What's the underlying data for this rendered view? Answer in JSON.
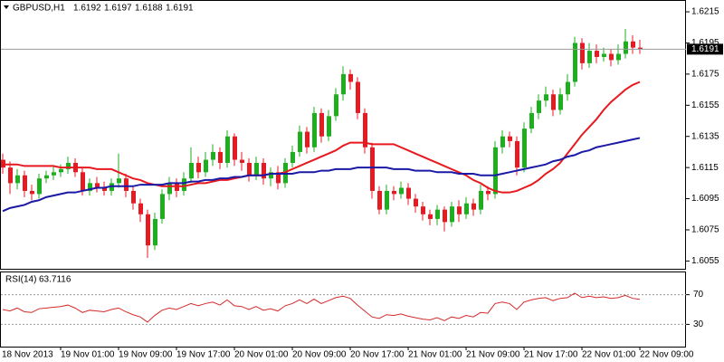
{
  "chart_data": [
    {
      "type": "candlestick",
      "title": "GBPUSD,H1",
      "categories": [
        "18 Nov 2013",
        null,
        null,
        null,
        null,
        null,
        null,
        null,
        "19 Nov 01:00",
        null,
        null,
        null,
        null,
        null,
        null,
        null,
        "19 Nov 09:00",
        null,
        null,
        null,
        null,
        null,
        null,
        null,
        "19 Nov 17:00",
        null,
        null,
        null,
        null,
        null,
        null,
        null,
        "20 Nov 01:00",
        null,
        null,
        null,
        null,
        null,
        null,
        null,
        "20 Nov 09:00",
        null,
        null,
        null,
        null,
        null,
        null,
        null,
        "20 Nov 17:00",
        null,
        null,
        null,
        null,
        null,
        null,
        null,
        "21 Nov 01:00",
        null,
        null,
        null,
        null,
        null,
        null,
        null,
        "21 Nov 09:00",
        null,
        null,
        null,
        null,
        null,
        null,
        null,
        "21 Nov 17:00",
        null,
        null,
        null,
        null,
        null,
        null,
        null,
        "22 Nov 01:00",
        null,
        null,
        null,
        null,
        null,
        null,
        null,
        "22 Nov 09:00"
      ],
      "open": [
        1.612,
        1.6115,
        1.6105,
        1.611,
        1.61,
        1.6098,
        1.6108,
        1.611,
        1.6112,
        1.6114,
        1.6118,
        1.6112,
        1.61,
        1.6105,
        1.6102,
        1.61,
        1.6105,
        1.6108,
        1.61,
        1.6092,
        1.6085,
        1.6065,
        1.6082,
        1.6098,
        1.6105,
        1.61,
        1.6108,
        1.6118,
        1.6112,
        1.612,
        1.6125,
        1.6118,
        1.6135,
        1.612,
        1.6118,
        1.611,
        1.6118,
        1.6108,
        1.6112,
        1.6105,
        1.6118,
        1.6125,
        1.6138,
        1.6128,
        1.615,
        1.6135,
        1.6148,
        1.6162,
        1.6175,
        1.617,
        1.615,
        1.6128,
        1.61,
        1.6088,
        1.61,
        1.6098,
        1.6102,
        1.6095,
        1.609,
        1.6085,
        1.6082,
        1.6088,
        1.608,
        1.609,
        1.6085,
        1.6092,
        1.6088,
        1.61,
        1.6098,
        1.6128,
        1.6135,
        1.6132,
        1.6115,
        1.614,
        1.615,
        1.6158,
        1.6162,
        1.6152,
        1.6162,
        1.617,
        1.6195,
        1.6182,
        1.619,
        1.6186,
        1.6188,
        1.6184,
        1.6188,
        1.6196,
        1.6192
      ],
      "high": [
        1.6124,
        1.6119,
        1.6114,
        1.6113,
        1.6104,
        1.6111,
        1.6113,
        1.6116,
        1.6117,
        1.6122,
        1.6121,
        1.6115,
        1.6108,
        1.6109,
        1.6106,
        1.6108,
        1.6124,
        1.6111,
        1.6103,
        1.6095,
        1.6088,
        1.6086,
        1.6101,
        1.6109,
        1.6108,
        1.6112,
        1.6128,
        1.6122,
        1.6125,
        1.613,
        1.6128,
        1.6139,
        1.6137,
        1.6125,
        1.6121,
        1.6122,
        1.6121,
        1.6115,
        1.6116,
        1.6121,
        1.6129,
        1.6142,
        1.6141,
        1.6154,
        1.6153,
        1.6152,
        1.6166,
        1.618,
        1.6178,
        1.6173,
        1.6153,
        1.6131,
        1.6103,
        1.6104,
        1.6103,
        1.6106,
        1.6105,
        1.6098,
        1.6093,
        1.6088,
        1.6091,
        1.609,
        1.6093,
        1.6094,
        1.6096,
        1.6095,
        1.6104,
        1.6103,
        1.6132,
        1.6139,
        1.6138,
        1.6135,
        1.6144,
        1.6154,
        1.6162,
        1.6167,
        1.6165,
        1.6166,
        1.6175,
        1.6199,
        1.6198,
        1.6195,
        1.6194,
        1.6192,
        1.6191,
        1.6194,
        1.6204,
        1.62,
        1.6197
      ],
      "low": [
        1.6111,
        1.6098,
        1.6101,
        1.6096,
        1.6094,
        1.6095,
        1.6105,
        1.6107,
        1.6109,
        1.6111,
        1.6109,
        1.6097,
        1.6097,
        1.6099,
        1.6097,
        1.6097,
        1.6102,
        1.6096,
        1.6088,
        1.608,
        1.6057,
        1.6062,
        1.6079,
        1.6094,
        1.6096,
        1.6097,
        1.6105,
        1.6108,
        1.6109,
        1.6116,
        1.6114,
        1.6115,
        1.6116,
        1.6113,
        1.6106,
        1.6107,
        1.6104,
        1.6103,
        1.6101,
        1.6102,
        1.6115,
        1.6122,
        1.6124,
        1.6125,
        1.6131,
        1.6132,
        1.6145,
        1.6158,
        1.6165,
        1.6146,
        1.6124,
        1.6095,
        1.6085,
        1.6085,
        1.6094,
        1.6095,
        1.6091,
        1.6086,
        1.6081,
        1.6078,
        1.6078,
        1.6074,
        1.6077,
        1.608,
        1.6082,
        1.6084,
        1.6085,
        1.6094,
        1.6095,
        1.6124,
        1.6128,
        1.611,
        1.6112,
        1.6137,
        1.6146,
        1.6154,
        1.6148,
        1.6149,
        1.6158,
        1.6167,
        1.6178,
        1.6179,
        1.6182,
        1.6183,
        1.618,
        1.6181,
        1.6185,
        1.6188,
        1.6188
      ],
      "close": [
        1.6115,
        1.6105,
        1.611,
        1.61,
        1.6098,
        1.6108,
        1.611,
        1.6112,
        1.6114,
        1.6118,
        1.6112,
        1.61,
        1.6105,
        1.6102,
        1.61,
        1.6105,
        1.6108,
        1.61,
        1.6092,
        1.6085,
        1.6065,
        1.6082,
        1.6098,
        1.6105,
        1.61,
        1.6108,
        1.6118,
        1.6112,
        1.612,
        1.6125,
        1.6118,
        1.6135,
        1.612,
        1.6118,
        1.611,
        1.6118,
        1.6108,
        1.6112,
        1.6105,
        1.6118,
        1.6125,
        1.6138,
        1.6128,
        1.615,
        1.6135,
        1.6148,
        1.6162,
        1.6175,
        1.617,
        1.615,
        1.6128,
        1.61,
        1.6088,
        1.61,
        1.6098,
        1.6102,
        1.6095,
        1.609,
        1.6085,
        1.6082,
        1.6088,
        1.608,
        1.609,
        1.6085,
        1.6092,
        1.6088,
        1.61,
        1.6098,
        1.6128,
        1.6135,
        1.6132,
        1.6115,
        1.614,
        1.615,
        1.6158,
        1.6162,
        1.6152,
        1.6162,
        1.617,
        1.6195,
        1.6182,
        1.619,
        1.6186,
        1.6188,
        1.6184,
        1.6188,
        1.6196,
        1.6192,
        1.6191
      ],
      "up_color": "#1fae1f",
      "down_color": "#e41b23",
      "overlays": [
        {
          "color": "#e8191e",
          "values": [
            1.6117,
            1.6117,
            1.6117,
            1.6116,
            1.6116,
            1.6116,
            1.6116,
            1.6116,
            1.6115,
            1.6115,
            1.6115,
            1.6115,
            1.6115,
            1.6114,
            1.6114,
            1.6114,
            1.6112,
            1.611,
            1.6108,
            1.6107,
            1.6105,
            1.6104,
            1.6103,
            1.6103,
            1.6103,
            1.6103,
            1.6104,
            1.6105,
            1.6105,
            1.6106,
            1.6107,
            1.6107,
            1.6108,
            1.6109,
            1.611,
            1.611,
            1.611,
            1.6111,
            1.6111,
            1.6112,
            1.6114,
            1.6116,
            1.6118,
            1.612,
            1.6122,
            1.6124,
            1.6126,
            1.6129,
            1.6131,
            1.6131,
            1.6131,
            1.613,
            1.613,
            1.613,
            1.613,
            1.6128,
            1.6126,
            1.6124,
            1.6122,
            1.612,
            1.6118,
            1.6116,
            1.6114,
            1.6112,
            1.611,
            1.6107,
            1.6105,
            1.6102,
            1.61,
            1.6099,
            1.6099,
            1.61,
            1.6102,
            1.6104,
            1.6107,
            1.6111,
            1.6114,
            1.6118,
            1.6124,
            1.613,
            1.6136,
            1.6141,
            1.6146,
            1.6152,
            1.6157,
            1.6161,
            1.6165,
            1.6168,
            1.617
          ]
        },
        {
          "color": "#1a1aa6",
          "values": [
            1.6087,
            1.6089,
            1.609,
            1.6091,
            1.6093,
            1.6094,
            1.6096,
            1.6097,
            1.6098,
            1.6099,
            1.6099,
            1.61,
            1.6101,
            1.6102,
            1.6102,
            1.6103,
            1.6103,
            1.6103,
            1.6103,
            1.6104,
            1.6104,
            1.6104,
            1.6104,
            1.6105,
            1.6105,
            1.6105,
            1.6106,
            1.6106,
            1.6107,
            1.6107,
            1.6108,
            1.6108,
            1.6109,
            1.6109,
            1.611,
            1.611,
            1.611,
            1.6111,
            1.6111,
            1.6111,
            1.6111,
            1.6112,
            1.6112,
            1.6112,
            1.6113,
            1.6113,
            1.6114,
            1.6114,
            1.6114,
            1.6115,
            1.6115,
            1.6115,
            1.6115,
            1.6115,
            1.6114,
            1.6114,
            1.6114,
            1.6113,
            1.6113,
            1.6113,
            1.6112,
            1.6112,
            1.6112,
            1.6111,
            1.6111,
            1.6111,
            1.611,
            1.611,
            1.611,
            1.6111,
            1.6112,
            1.6113,
            1.6114,
            1.6115,
            1.6116,
            1.6117,
            1.6119,
            1.612,
            1.6122,
            1.6123,
            1.6125,
            1.6126,
            1.6128,
            1.6129,
            1.613,
            1.6131,
            1.6132,
            1.6133,
            1.6134
          ]
        }
      ],
      "ylim": [
        1.605,
        1.6222
      ],
      "yticks": [
        1.6215,
        1.6195,
        1.6175,
        1.6155,
        1.6135,
        1.6115,
        1.6095,
        1.6075,
        1.6055
      ]
    },
    {
      "type": "line",
      "title": "RSI(14)",
      "color": "#d42a2a",
      "values": [
        50,
        48,
        52,
        47,
        46,
        51,
        52,
        53,
        54,
        56,
        52,
        46,
        49,
        48,
        47,
        50,
        52,
        47,
        43,
        40,
        33,
        42,
        49,
        52,
        50,
        54,
        58,
        55,
        58,
        60,
        56,
        63,
        55,
        54,
        50,
        54,
        49,
        51,
        48,
        55,
        58,
        63,
        58,
        64,
        58,
        62,
        66,
        68,
        65,
        56,
        48,
        40,
        38,
        43,
        42,
        44,
        41,
        39,
        37,
        36,
        39,
        35,
        40,
        38,
        42,
        40,
        46,
        45,
        58,
        60,
        58,
        50,
        60,
        63,
        65,
        66,
        62,
        65,
        66,
        72,
        66,
        68,
        66,
        67,
        65,
        66,
        69,
        65,
        63.7116
      ],
      "ylim": [
        0,
        100
      ],
      "yticks": [
        70,
        30
      ]
    }
  ]
}
